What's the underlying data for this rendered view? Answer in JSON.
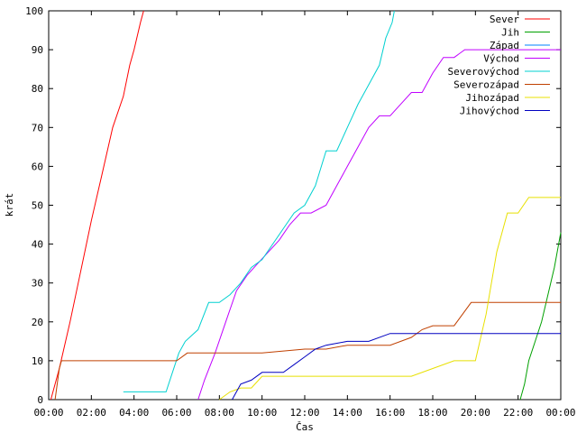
{
  "chart_data": {
    "type": "line",
    "xlabel": "Čas",
    "ylabel": "krát",
    "xlim": [
      0,
      24
    ],
    "ylim": [
      0,
      100
    ],
    "x_ticks": [
      {
        "v": 0,
        "label": "00:00"
      },
      {
        "v": 2,
        "label": "02:00"
      },
      {
        "v": 4,
        "label": "04:00"
      },
      {
        "v": 6,
        "label": "06:00"
      },
      {
        "v": 8,
        "label": "08:00"
      },
      {
        "v": 10,
        "label": "10:00"
      },
      {
        "v": 12,
        "label": "12:00"
      },
      {
        "v": 14,
        "label": "14:00"
      },
      {
        "v": 16,
        "label": "16:00"
      },
      {
        "v": 18,
        "label": "18:00"
      },
      {
        "v": 20,
        "label": "20:00"
      },
      {
        "v": 22,
        "label": "22:00"
      },
      {
        "v": 24,
        "label": "00:00"
      }
    ],
    "y_ticks": [
      {
        "v": 0,
        "label": "0"
      },
      {
        "v": 10,
        "label": "10"
      },
      {
        "v": 20,
        "label": "20"
      },
      {
        "v": 30,
        "label": "30"
      },
      {
        "v": 40,
        "label": "40"
      },
      {
        "v": 50,
        "label": "50"
      },
      {
        "v": 60,
        "label": "60"
      },
      {
        "v": 70,
        "label": "70"
      },
      {
        "v": 80,
        "label": "80"
      },
      {
        "v": 90,
        "label": "90"
      },
      {
        "v": 100,
        "label": "100"
      }
    ],
    "grid": false,
    "legend_position": "top-right",
    "series": [
      {
        "name": "Sever",
        "color": "#ff0000",
        "x": [
          0.1,
          0.5,
          1.0,
          1.5,
          2.0,
          2.5,
          3.0,
          3.5,
          3.8,
          4.0,
          4.3,
          4.45
        ],
        "y": [
          0,
          8,
          20,
          33,
          46,
          58,
          70,
          78,
          86,
          90,
          97,
          100
        ]
      },
      {
        "name": "Jih",
        "color": "#00a000",
        "x": [
          22.1,
          22.3,
          22.5,
          22.8,
          23.1,
          23.4,
          23.7,
          24.0
        ],
        "y": [
          0,
          4,
          10,
          15,
          20,
          27,
          34,
          43
        ]
      },
      {
        "name": "Západ",
        "color": "#0080ff",
        "x": [],
        "y": []
      },
      {
        "name": "Východ",
        "color": "#c000ff",
        "x": [
          7.0,
          7.3,
          7.8,
          8.3,
          8.8,
          9.3,
          9.8,
          10.3,
          10.8,
          11.3,
          11.8,
          12.3,
          13.0,
          13.5,
          14.0,
          14.5,
          15.0,
          15.5,
          16.0,
          16.5,
          17.0,
          17.5,
          18.0,
          18.5,
          19.0,
          19.5,
          20.0,
          22.0,
          24.0
        ],
        "y": [
          0,
          5,
          12,
          20,
          28,
          32,
          35,
          38,
          41,
          45,
          48,
          48,
          50,
          55,
          60,
          65,
          70,
          73,
          73,
          76,
          79,
          79,
          84,
          88,
          88,
          90,
          90,
          90,
          90
        ]
      },
      {
        "name": "Severovýchod",
        "color": "#00d0d0",
        "x": [
          3.5,
          5.5,
          5.8,
          6.1,
          6.4,
          7.0,
          7.5,
          8.0,
          8.5,
          9.0,
          9.5,
          10.0,
          10.5,
          11.0,
          11.5,
          12.0,
          12.5,
          13.0,
          13.5,
          14.0,
          14.5,
          15.0,
          15.5,
          15.8,
          16.1,
          16.2
        ],
        "y": [
          2,
          2,
          7,
          12,
          15,
          18,
          25,
          25,
          27,
          30,
          34,
          36,
          40,
          44,
          48,
          50,
          55,
          64,
          64,
          70,
          76,
          81,
          86,
          93,
          97,
          100
        ]
      },
      {
        "name": "Severozápad",
        "color": "#c04000",
        "x": [
          0.3,
          0.5,
          0.6,
          2.0,
          4.0,
          6.0,
          6.5,
          8.0,
          10.0,
          12.0,
          13.0,
          14.0,
          16.0,
          16.5,
          17.0,
          17.5,
          18.0,
          19.0,
          19.8,
          20.0,
          22.0,
          24.0
        ],
        "y": [
          0,
          8,
          10,
          10,
          10,
          10,
          12,
          12,
          12,
          13,
          13,
          14,
          14,
          15,
          16,
          18,
          19,
          19,
          25,
          25,
          25,
          25
        ]
      },
      {
        "name": "Jihozápad",
        "color": "#e8e000",
        "x": [
          8.0,
          8.5,
          9.0,
          9.5,
          10.0,
          12.0,
          14.0,
          16.0,
          17.0,
          18.0,
          19.0,
          20.0,
          20.5,
          21.0,
          21.5,
          22.0,
          22.5,
          23.0,
          24.0
        ],
        "y": [
          0,
          2,
          3,
          3,
          6,
          6,
          6,
          6,
          6,
          8,
          10,
          10,
          22,
          38,
          48,
          48,
          52,
          52,
          52
        ]
      },
      {
        "name": "Jihovýchod",
        "color": "#0000c0",
        "x": [
          8.6,
          9.0,
          9.5,
          10.0,
          11.0,
          11.5,
          12.0,
          12.5,
          13.0,
          14.0,
          15.0,
          16.0,
          17.0,
          20.0,
          24.0
        ],
        "y": [
          0,
          4,
          5,
          7,
          7,
          9,
          11,
          13,
          14,
          15,
          15,
          17,
          17,
          17,
          17
        ]
      }
    ]
  }
}
